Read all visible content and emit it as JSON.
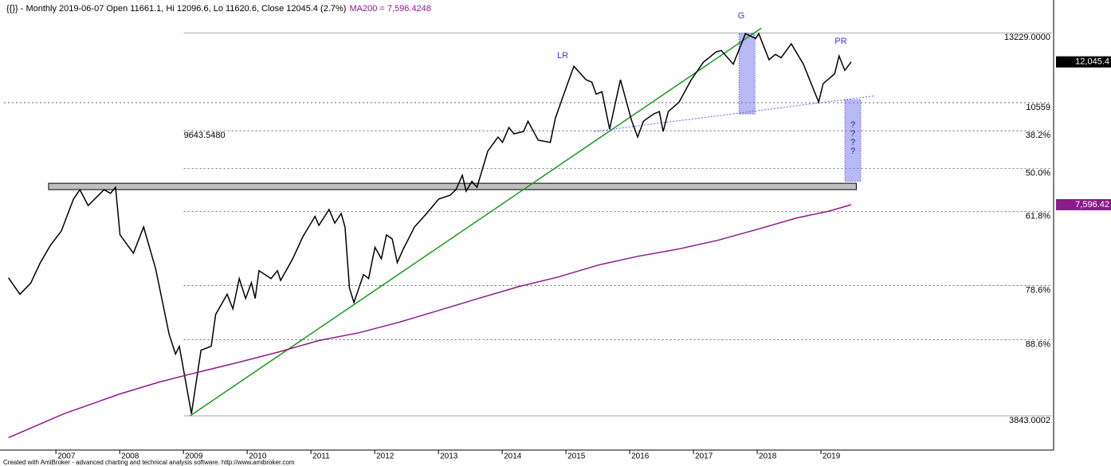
{
  "chart_data": {
    "type": "line",
    "title": "{{}} - Monthly 2019-06-07 Open 11661.1, Hi 12096.6, Lo 11620.6, Close 12045.4 (2.7%)",
    "subtitle": "MA200 = 7,596.4248",
    "footer": "Created with AmiBroker - advanced charting and technical analysis software. http://www.amibroker.com",
    "log_scale": true,
    "xlim": [
      2006.16,
      2022.625
    ],
    "ylim": [
      3414,
      14410
    ],
    "xticks": [
      2007,
      2008,
      2009,
      2010,
      2011,
      2012,
      2013,
      2014,
      2015,
      2016,
      2017,
      2018,
      2019
    ],
    "series": [
      {
        "color": "#000000",
        "last_label": "12,045.4",
        "x": [
          2006.23,
          2006.41,
          2006.58,
          2006.73,
          2006.89,
          2007.06,
          2007.25,
          2007.35,
          2007.48,
          2007.73,
          2007.83,
          2007.91,
          2007.98,
          2008.19,
          2008.35,
          2008.54,
          2008.75,
          2008.85,
          2008.91,
          2009.1,
          2009.25,
          2009.41,
          2009.48,
          2009.66,
          2009.75,
          2009.85,
          2009.95,
          2010.04,
          2010.1,
          2010.16,
          2010.35,
          2010.45,
          2010.5,
          2010.69,
          2010.85,
          2011.04,
          2011.1,
          2011.26,
          2011.35,
          2011.45,
          2011.51,
          2011.58,
          2011.65,
          2011.8,
          2011.88,
          2011.98,
          2012.08,
          2012.16,
          2012.25,
          2012.33,
          2012.41,
          2012.6,
          2012.79,
          2012.98,
          2013.16,
          2013.25,
          2013.35,
          2013.41,
          2013.5,
          2013.58,
          2013.75,
          2013.91,
          2013.98,
          2014.08,
          2014.16,
          2014.31,
          2014.38,
          2014.54,
          2014.73,
          2014.81,
          2015.0,
          2015.1,
          2015.29,
          2015.38,
          2015.45,
          2015.54,
          2015.66,
          2015.83,
          2016.0,
          2016.1,
          2016.19,
          2016.35,
          2016.44,
          2016.5,
          2016.58,
          2016.75,
          2016.94,
          2017.13,
          2017.33,
          2017.41,
          2017.6,
          2017.79,
          2017.95,
          2018.0,
          2018.16,
          2018.26,
          2018.35,
          2018.51,
          2018.7,
          2018.94,
          2019.01,
          2019.19,
          2019.26,
          2019.35,
          2019.45
        ],
        "values": [
          6000,
          5690,
          5900,
          6300,
          6665,
          6980,
          7735,
          7975,
          7577,
          7975,
          7878,
          8036,
          6891,
          6496,
          7070,
          6171,
          5000,
          4690,
          4810,
          3868,
          4750,
          4810,
          5330,
          5690,
          5427,
          5985,
          5612,
          5905,
          5612,
          6140,
          5985,
          6140,
          5950,
          6380,
          6855,
          7316,
          7107,
          7480,
          7160,
          7385,
          7070,
          5802,
          5540,
          6062,
          5985,
          6620,
          6380,
          6891,
          6800,
          6300,
          6546,
          7070,
          7385,
          7735,
          7834,
          7975,
          8353,
          7935,
          8190,
          8036,
          9033,
          9450,
          9290,
          9745,
          9550,
          9620,
          9945,
          9355,
          9290,
          10050,
          11225,
          11876,
          11370,
          11283,
          10855,
          10940,
          9695,
          11370,
          10000,
          9450,
          9945,
          10180,
          10260,
          9620,
          10260,
          10580,
          11370,
          12030,
          12440,
          12500,
          11960,
          13195,
          12990,
          13195,
          12130,
          12340,
          12210,
          12770,
          11960,
          10580,
          11225,
          11590,
          12280,
          11720,
          12045.4
        ]
      },
      {
        "name": "MA200",
        "color": "#8b1a8b",
        "last_label": "7,596.42",
        "x": [
          2006.23,
          2007.1,
          2007.98,
          2008.6,
          2009.1,
          2009.85,
          2010.48,
          2011.1,
          2011.73,
          2012.35,
          2012.98,
          2013.6,
          2014.23,
          2014.85,
          2015.48,
          2016.1,
          2016.73,
          2017.35,
          2017.98,
          2018.6,
          2019.1,
          2019.45
        ],
        "values": [
          3581,
          3868,
          4124,
          4286,
          4400,
          4570,
          4725,
          4900,
          5025,
          5195,
          5400,
          5612,
          5830,
          6015,
          6250,
          6430,
          6580,
          6770,
          7018,
          7280,
          7440,
          7596.4248
        ]
      }
    ],
    "levels": [
      {
        "value": 13229,
        "label": "13229.0000",
        "style": "solid",
        "x_from": 2008.98
      },
      {
        "value": 10559,
        "label": "10559",
        "style": "dashed"
      },
      {
        "value": 9643.548,
        "label": "38.2%",
        "style": "dashed",
        "x_from": 2008.98,
        "left_label": "9643.5480"
      },
      {
        "value": 8536,
        "label": "50.0%",
        "style": "dashed",
        "x_from": 2008.98
      },
      {
        "value": 7428.5,
        "label": "61.8%",
        "style": "dashed",
        "x_from": 2008.98
      },
      {
        "value": 5851.6,
        "label": "78.6%",
        "style": "dashed",
        "x_from": 2008.98
      },
      {
        "value": 4913,
        "label": "88.6%",
        "style": "dashed",
        "x_from": 2008.98
      },
      {
        "value": 3843.0002,
        "label": "3843.0002",
        "style": "solid",
        "x_from": 2008.98
      }
    ],
    "zones": [
      {
        "x": [
          2006.86,
          2019.53
        ],
        "y": [
          7975,
          8140
        ],
        "color": "#c0c0c0"
      }
    ],
    "trendlines": [
      {
        "x": [
          2009.08,
          2018.04
        ],
        "y": [
          3843,
          13434
        ],
        "color": "#1a9a1a",
        "style": "solid"
      },
      {
        "x": [
          2015.41,
          2019.83
        ],
        "y": [
          9620,
          10800
        ],
        "color": "#6060e0",
        "style": "dashed"
      }
    ],
    "boxes": [
      {
        "x": [
          2017.69,
          2017.94
        ],
        "y": [
          10180,
          13195
        ],
        "color": "#8080f0"
      },
      {
        "x": [
          2019.35,
          2019.6
        ],
        "y": [
          8190,
          10660
        ],
        "color": "#8080f0",
        "text": [
          "?",
          "?",
          "?",
          "?"
        ]
      }
    ],
    "annotations": [
      "G",
      "LR",
      "PR"
    ]
  }
}
